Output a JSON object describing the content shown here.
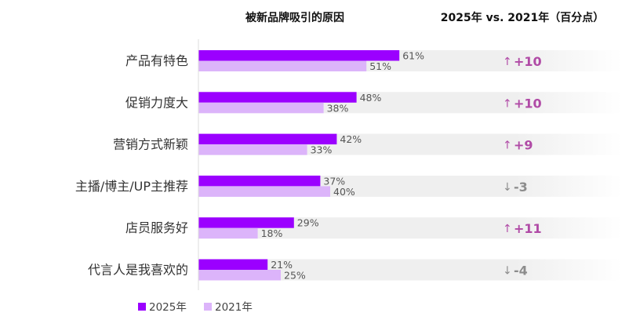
{
  "chart_data": {
    "type": "bar",
    "orientation": "horizontal",
    "title": "被新品牌吸引的原因",
    "delta_title": "2025年 vs. 2021年（百分点）",
    "categories": [
      "产品有特色",
      "促销力度大",
      "营销方式新颖",
      "主播/博主/UP主推荐",
      "店员服务好",
      "代言人是我喜欢的"
    ],
    "series": [
      {
        "name": "2025年",
        "color": "#9b00ff",
        "values": [
          61,
          48,
          42,
          37,
          29,
          21
        ],
        "labels": [
          "61%",
          "48%",
          "42%",
          "37%",
          "29%",
          "21%"
        ]
      },
      {
        "name": "2021年",
        "color": "#dcb4fa",
        "values": [
          51,
          38,
          33,
          40,
          18,
          25
        ],
        "labels": [
          "51%",
          "38%",
          "33%",
          "40%",
          "18%",
          "25%"
        ]
      }
    ],
    "deltas": [
      "+10",
      "+10",
      "+9",
      "-3",
      "+11",
      "-4"
    ],
    "delta_colors": {
      "up": "#b04aa6",
      "down": "#8c8c8c"
    },
    "legend_position": "bottom-left",
    "grid": false
  }
}
